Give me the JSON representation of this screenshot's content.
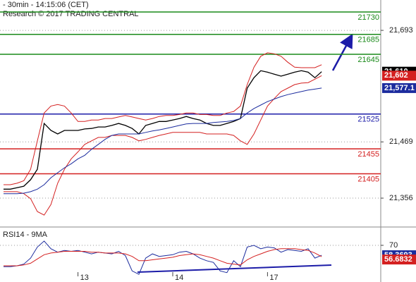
{
  "chart_data": [
    {
      "type": "line",
      "title": "- 30min - 14:15:06 (CET)",
      "subtitle": "Research © 2017 TRADING CENTRAL",
      "categories": [
        null,
        null,
        null,
        null,
        null,
        null,
        null,
        null,
        null,
        null,
        null,
        "13",
        null,
        null,
        null,
        null,
        null,
        null,
        null,
        null,
        null,
        null,
        null,
        null,
        null,
        "14",
        null,
        null,
        null,
        null,
        null,
        null,
        null,
        null,
        null,
        null,
        null,
        null,
        null,
        "17",
        null,
        null,
        null,
        null,
        null,
        null,
        null,
        null
      ],
      "ylim": [
        21298,
        21754
      ],
      "yticks": [
        {
          "value": 21693,
          "label": "21,693"
        },
        {
          "value": 21469,
          "label": "21,469"
        },
        {
          "value": 21356,
          "label": "21,356"
        }
      ],
      "grid": true,
      "levels": [
        {
          "value": 21730,
          "color": "#1a8a1a"
        },
        {
          "value": 21685,
          "color": "#1a8a1a"
        },
        {
          "value": 21645,
          "color": "#1a8a1a"
        },
        {
          "value": 21525,
          "color": "#1c1ca8"
        },
        {
          "value": 21455,
          "color": "#d42020"
        },
        {
          "value": 21405,
          "color": "#d42020"
        }
      ],
      "series": [
        {
          "color": "#000000",
          "values": [
            21374,
            21374,
            21377,
            21380,
            21393,
            21414,
            21506,
            21492,
            21485,
            21492,
            21492,
            21492,
            21495,
            21496,
            21499,
            21499,
            21502,
            21506,
            21502,
            21496,
            21485,
            21502,
            21506,
            21510,
            21510,
            21513,
            21516,
            21520,
            21516,
            21513,
            21506,
            21502,
            21502,
            21506,
            21510,
            21516,
            21577,
            21598,
            21612,
            21609,
            21605,
            21601,
            21605,
            21609,
            21612,
            21609,
            21598,
            21610
          ],
          "value_labels": [
            null,
            null,
            null,
            null,
            null,
            null,
            null,
            null,
            null,
            null,
            null,
            null,
            null,
            null,
            null,
            null,
            null,
            null,
            null,
            null,
            null,
            null,
            null,
            null,
            null,
            null,
            null,
            null,
            null,
            null,
            null,
            null,
            null,
            null,
            null,
            null,
            null,
            null,
            null,
            null,
            null,
            null,
            null,
            null,
            null,
            null,
            null,
            "21,610"
          ]
        },
        {
          "color": "#d42020",
          "values": [
            21383,
            21383,
            21386,
            21391,
            21414,
            21471,
            21527,
            21541,
            21544,
            21541,
            21527,
            21510,
            21510,
            21513,
            21513,
            21516,
            21516,
            21519,
            21522,
            21519,
            21516,
            21513,
            21516,
            21520,
            21522,
            21522,
            21524,
            21527,
            21527,
            21524,
            21524,
            21522,
            21522,
            21527,
            21530,
            21541,
            21584,
            21619,
            21641,
            21648,
            21646,
            21641,
            21629,
            21619,
            21618,
            21618,
            21618,
            21624
          ]
        },
        {
          "color": "#d42020",
          "values": [
            21369,
            21369,
            21369,
            21365,
            21355,
            21329,
            21322,
            21343,
            21386,
            21414,
            21435,
            21449,
            21464,
            21471,
            21478,
            21478,
            21482,
            21482,
            21482,
            21478,
            21471,
            21474,
            21478,
            21482,
            21485,
            21488,
            21488,
            21488,
            21488,
            21488,
            21485,
            21485,
            21485,
            21485,
            21482,
            21471,
            21464,
            21485,
            21513,
            21541,
            21556,
            21570,
            21577,
            21584,
            21587,
            21588,
            21595,
            21602
          ],
          "value_labels": [
            null,
            null,
            null,
            null,
            null,
            null,
            null,
            null,
            null,
            null,
            null,
            null,
            null,
            null,
            null,
            null,
            null,
            null,
            null,
            null,
            null,
            null,
            null,
            null,
            null,
            null,
            null,
            null,
            null,
            null,
            null,
            null,
            null,
            null,
            null,
            null,
            null,
            null,
            null,
            null,
            null,
            null,
            null,
            null,
            null,
            null,
            null,
            "21,602"
          ]
        },
        {
          "color": "#1c2c9e",
          "values": [
            21365,
            21365,
            21365,
            21366,
            21369,
            21374,
            21383,
            21397,
            21407,
            21417,
            21425,
            21435,
            21442,
            21454,
            21464,
            21474,
            21482,
            21485,
            21485,
            21485,
            21485,
            21488,
            21491,
            21493,
            21496,
            21499,
            21502,
            21505,
            21506,
            21506,
            21506,
            21508,
            21509,
            21510,
            21512,
            21516,
            21527,
            21536,
            21543,
            21550,
            21555,
            21560,
            21564,
            21567,
            21570,
            21573,
            21575,
            21577.1
          ],
          "value_labels": [
            null,
            null,
            null,
            null,
            null,
            null,
            null,
            null,
            null,
            null,
            null,
            null,
            null,
            null,
            null,
            null,
            null,
            null,
            null,
            null,
            null,
            null,
            null,
            null,
            null,
            null,
            null,
            null,
            null,
            null,
            null,
            null,
            null,
            null,
            null,
            null,
            null,
            null,
            null,
            null,
            null,
            null,
            null,
            null,
            null,
            null,
            null,
            "21,577.1"
          ]
        }
      ]
    },
    {
      "type": "line",
      "title": "RSI14 - 9MA",
      "ylim": [
        27,
        89
      ],
      "yticks": [
        70
      ],
      "grid": true,
      "series": [
        {
          "color": "#1c2c9e",
          "values": [
            45,
            45,
            46,
            48,
            55,
            68,
            75,
            66,
            62,
            64,
            63,
            64,
            62,
            60,
            62,
            61,
            60,
            63,
            58,
            40,
            36,
            55,
            60,
            57,
            58,
            59,
            62,
            63,
            60,
            55,
            52,
            50,
            40,
            38,
            52,
            45,
            68,
            70,
            66,
            68,
            67,
            62,
            65,
            64,
            63,
            66,
            55,
            58.3693
          ]
        },
        {
          "color": "#d42020",
          "values": [
            46,
            46,
            46,
            47,
            49,
            54,
            59,
            61,
            62,
            63,
            63,
            63,
            63,
            62,
            62,
            61,
            61,
            61,
            60,
            57,
            52,
            52,
            53,
            54,
            55,
            56,
            58,
            59,
            60,
            59,
            57,
            55,
            52,
            49,
            48,
            47,
            53,
            57,
            60,
            63,
            65,
            66,
            66,
            66,
            65,
            64,
            61,
            56.6832
          ]
        }
      ]
    }
  ]
}
